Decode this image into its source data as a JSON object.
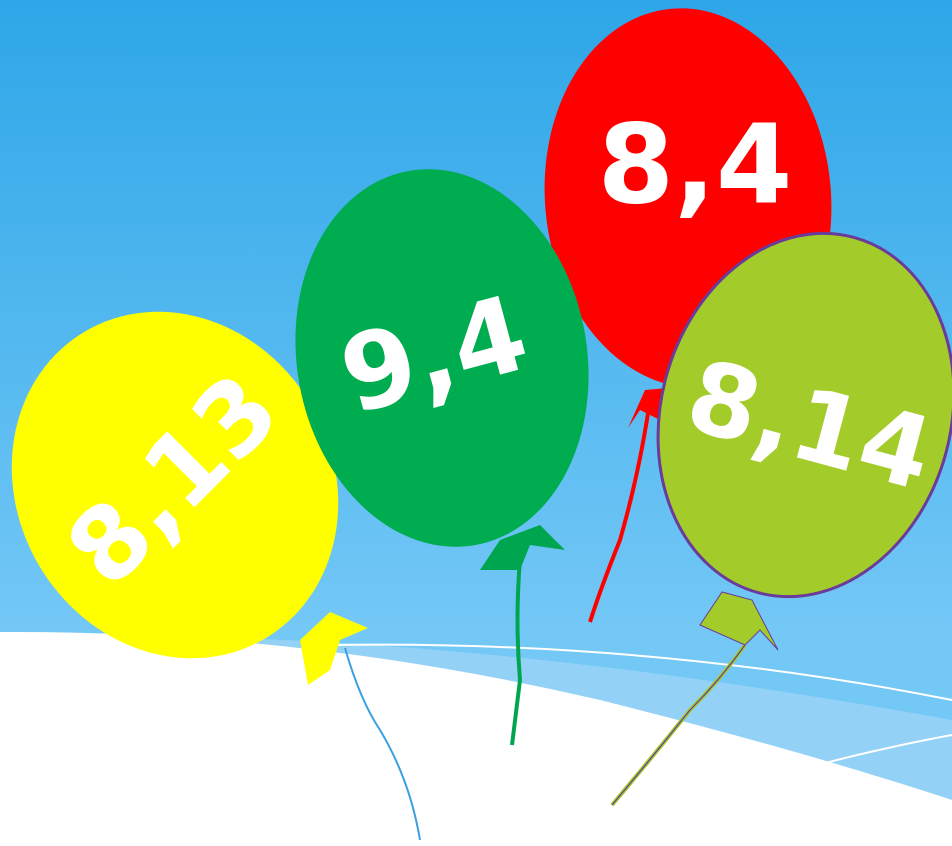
{
  "balloons": [
    {
      "label": "8,13"
    },
    {
      "label": "9,4"
    },
    {
      "label": "8,4"
    },
    {
      "label": "8,14"
    }
  ]
}
